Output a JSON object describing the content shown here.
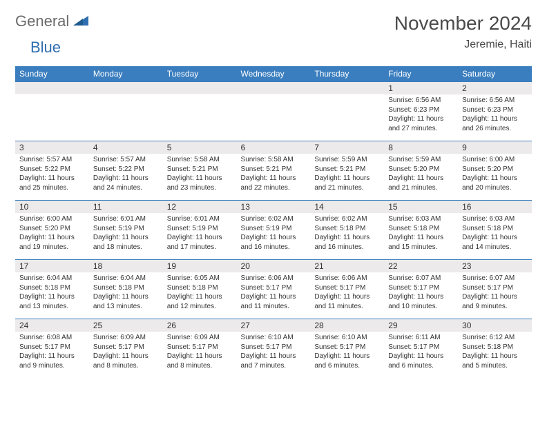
{
  "brand": {
    "part1": "General",
    "part2": "Blue"
  },
  "title": "November 2024",
  "location": "Jeremie, Haiti",
  "colors": {
    "header_bg": "#3a7ebf",
    "header_text": "#ffffff",
    "daynum_bg": "#eceaea",
    "border": "#3a7ebf",
    "logo_gray": "#6b6b6b",
    "logo_blue": "#2f6fb0"
  },
  "day_headers": [
    "Sunday",
    "Monday",
    "Tuesday",
    "Wednesday",
    "Thursday",
    "Friday",
    "Saturday"
  ],
  "weeks": [
    [
      null,
      null,
      null,
      null,
      null,
      {
        "n": "1",
        "sr": "6:56 AM",
        "ss": "6:23 PM",
        "dl": "11 hours and 27 minutes."
      },
      {
        "n": "2",
        "sr": "6:56 AM",
        "ss": "6:23 PM",
        "dl": "11 hours and 26 minutes."
      }
    ],
    [
      {
        "n": "3",
        "sr": "5:57 AM",
        "ss": "5:22 PM",
        "dl": "11 hours and 25 minutes."
      },
      {
        "n": "4",
        "sr": "5:57 AM",
        "ss": "5:22 PM",
        "dl": "11 hours and 24 minutes."
      },
      {
        "n": "5",
        "sr": "5:58 AM",
        "ss": "5:21 PM",
        "dl": "11 hours and 23 minutes."
      },
      {
        "n": "6",
        "sr": "5:58 AM",
        "ss": "5:21 PM",
        "dl": "11 hours and 22 minutes."
      },
      {
        "n": "7",
        "sr": "5:59 AM",
        "ss": "5:21 PM",
        "dl": "11 hours and 21 minutes."
      },
      {
        "n": "8",
        "sr": "5:59 AM",
        "ss": "5:20 PM",
        "dl": "11 hours and 21 minutes."
      },
      {
        "n": "9",
        "sr": "6:00 AM",
        "ss": "5:20 PM",
        "dl": "11 hours and 20 minutes."
      }
    ],
    [
      {
        "n": "10",
        "sr": "6:00 AM",
        "ss": "5:20 PM",
        "dl": "11 hours and 19 minutes."
      },
      {
        "n": "11",
        "sr": "6:01 AM",
        "ss": "5:19 PM",
        "dl": "11 hours and 18 minutes."
      },
      {
        "n": "12",
        "sr": "6:01 AM",
        "ss": "5:19 PM",
        "dl": "11 hours and 17 minutes."
      },
      {
        "n": "13",
        "sr": "6:02 AM",
        "ss": "5:19 PM",
        "dl": "11 hours and 16 minutes."
      },
      {
        "n": "14",
        "sr": "6:02 AM",
        "ss": "5:18 PM",
        "dl": "11 hours and 16 minutes."
      },
      {
        "n": "15",
        "sr": "6:03 AM",
        "ss": "5:18 PM",
        "dl": "11 hours and 15 minutes."
      },
      {
        "n": "16",
        "sr": "6:03 AM",
        "ss": "5:18 PM",
        "dl": "11 hours and 14 minutes."
      }
    ],
    [
      {
        "n": "17",
        "sr": "6:04 AM",
        "ss": "5:18 PM",
        "dl": "11 hours and 13 minutes."
      },
      {
        "n": "18",
        "sr": "6:04 AM",
        "ss": "5:18 PM",
        "dl": "11 hours and 13 minutes."
      },
      {
        "n": "19",
        "sr": "6:05 AM",
        "ss": "5:18 PM",
        "dl": "11 hours and 12 minutes."
      },
      {
        "n": "20",
        "sr": "6:06 AM",
        "ss": "5:17 PM",
        "dl": "11 hours and 11 minutes."
      },
      {
        "n": "21",
        "sr": "6:06 AM",
        "ss": "5:17 PM",
        "dl": "11 hours and 11 minutes."
      },
      {
        "n": "22",
        "sr": "6:07 AM",
        "ss": "5:17 PM",
        "dl": "11 hours and 10 minutes."
      },
      {
        "n": "23",
        "sr": "6:07 AM",
        "ss": "5:17 PM",
        "dl": "11 hours and 9 minutes."
      }
    ],
    [
      {
        "n": "24",
        "sr": "6:08 AM",
        "ss": "5:17 PM",
        "dl": "11 hours and 9 minutes."
      },
      {
        "n": "25",
        "sr": "6:09 AM",
        "ss": "5:17 PM",
        "dl": "11 hours and 8 minutes."
      },
      {
        "n": "26",
        "sr": "6:09 AM",
        "ss": "5:17 PM",
        "dl": "11 hours and 8 minutes."
      },
      {
        "n": "27",
        "sr": "6:10 AM",
        "ss": "5:17 PM",
        "dl": "11 hours and 7 minutes."
      },
      {
        "n": "28",
        "sr": "6:10 AM",
        "ss": "5:17 PM",
        "dl": "11 hours and 6 minutes."
      },
      {
        "n": "29",
        "sr": "6:11 AM",
        "ss": "5:17 PM",
        "dl": "11 hours and 6 minutes."
      },
      {
        "n": "30",
        "sr": "6:12 AM",
        "ss": "5:18 PM",
        "dl": "11 hours and 5 minutes."
      }
    ]
  ],
  "labels": {
    "sunrise": "Sunrise:",
    "sunset": "Sunset:",
    "daylight": "Daylight:"
  }
}
